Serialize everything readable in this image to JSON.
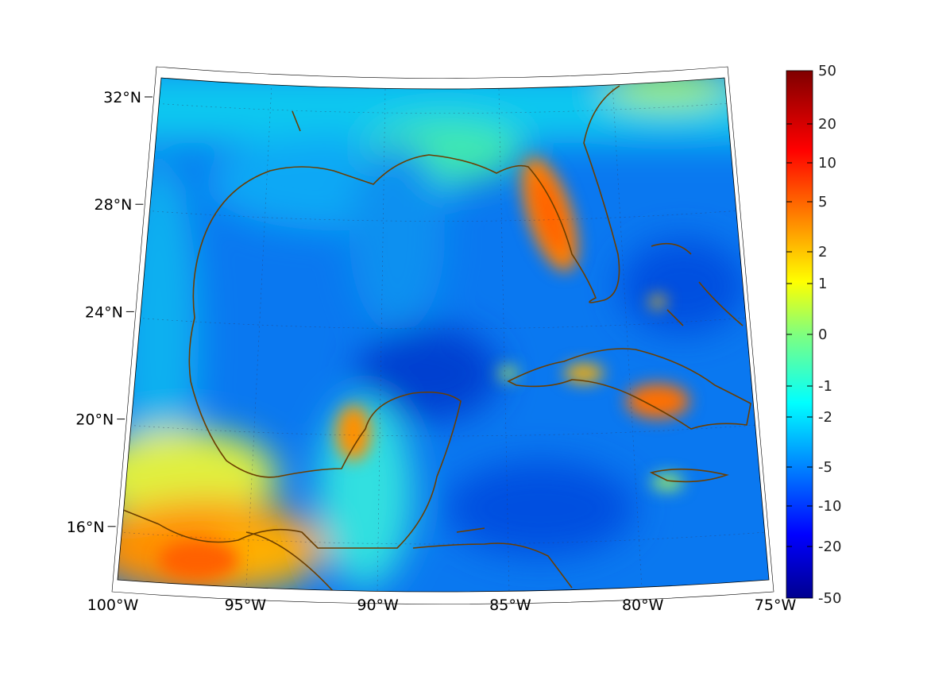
{
  "chart_data": {
    "type": "heatmap",
    "title": "",
    "region": "Gulf of Mexico / Caribbean",
    "lat_labels": [
      "32°N",
      "28°N",
      "24°N",
      "20°N",
      "16°N"
    ],
    "lat_values": [
      32,
      28,
      24,
      20,
      16
    ],
    "lon_labels": [
      "100°W",
      "95°W",
      "90°W",
      "85°W",
      "80°W",
      "75°W"
    ],
    "lon_values": [
      -100,
      -95,
      -90,
      -85,
      -80,
      -75
    ],
    "colorbar": {
      "colormap": "jet",
      "ticks": [
        "50",
        "20",
        "10",
        "5",
        "2",
        "1",
        "0",
        "-1",
        "-2",
        "-5",
        "-10",
        "-20",
        "-50"
      ],
      "range": [
        -50,
        50
      ]
    },
    "coastline_color": "#6b3e00",
    "background_color": "#0a6cf0"
  }
}
